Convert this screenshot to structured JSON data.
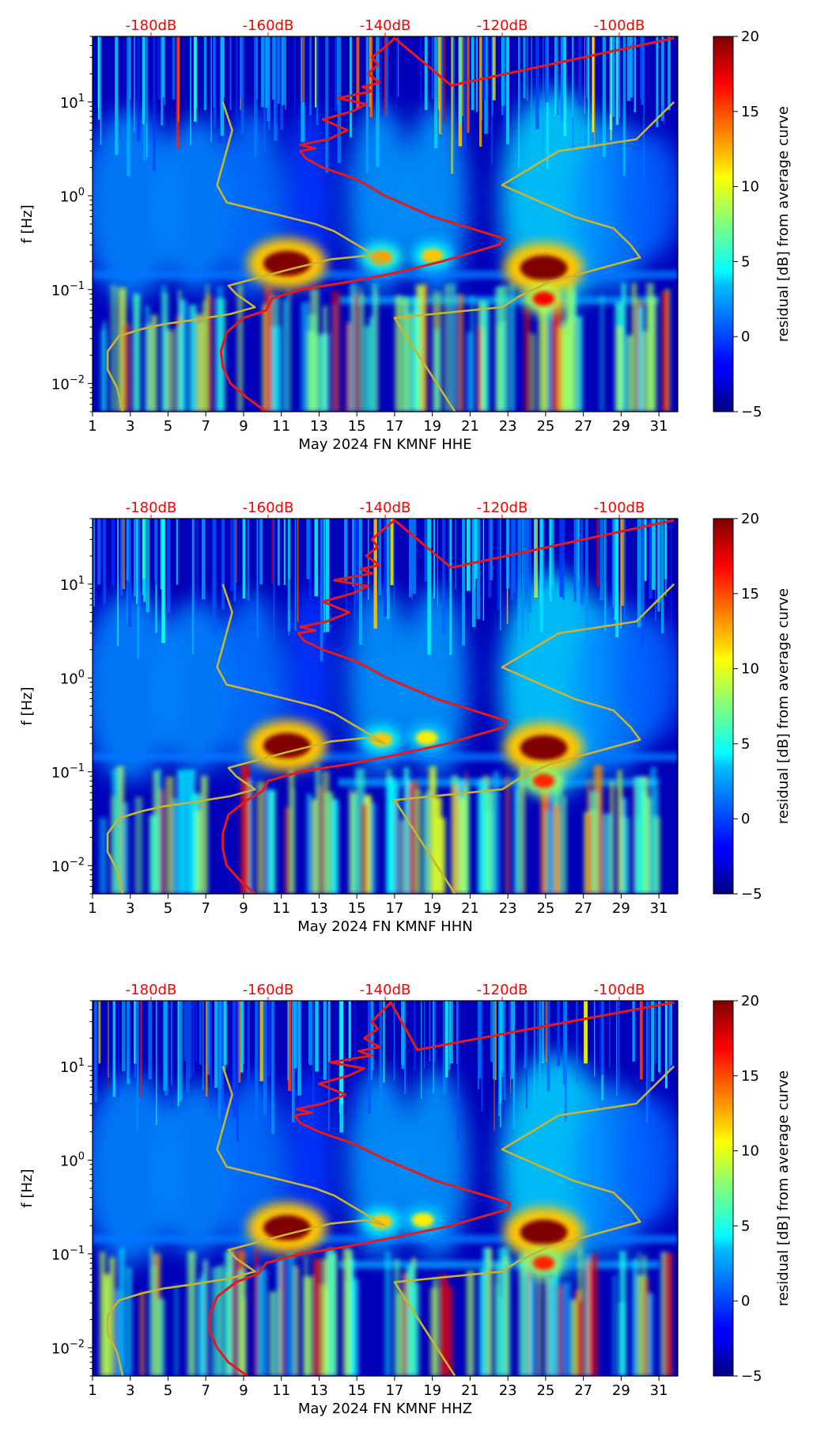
{
  "chart_data": [
    {
      "type": "heatmap",
      "station": "HHE",
      "xlabel": "May 2024 FN KMNF  HHE",
      "ylabel": "f [Hz]",
      "xlim": [
        1,
        32
      ],
      "xticks": [
        "1",
        "3",
        "5",
        "7",
        "9",
        "11",
        "13",
        "15",
        "17",
        "19",
        "21",
        "23",
        "25",
        "27",
        "29",
        "31"
      ],
      "ylim": [
        0.005,
        50
      ],
      "yticks": [
        {
          "value": 10,
          "base": "10",
          "exp": "1"
        },
        {
          "value": 1,
          "base": "10",
          "exp": "0"
        },
        {
          "value": 0.1,
          "base": "10",
          "exp": "−1"
        },
        {
          "value": 0.01,
          "base": "10",
          "exp": "−2"
        }
      ],
      "top_axis_labels": [
        "-180dB",
        "-160dB",
        "-140dB",
        "-120dB",
        "-100dB"
      ],
      "top_axis_color": "#ff0000",
      "colorbar": {
        "label": "residual [dB] from average curve",
        "min": -5,
        "max": 20,
        "ticks": [
          "20",
          "15",
          "10",
          "5",
          "0",
          "−5"
        ]
      },
      "hotspots": [
        {
          "day": 11.3,
          "freq": 0.19,
          "value": 20
        },
        {
          "day": 16.3,
          "freq": 0.22,
          "value": 13
        },
        {
          "day": 19.0,
          "freq": 0.23,
          "value": 12
        },
        {
          "day": 24.9,
          "freq": 0.17,
          "value": 20
        },
        {
          "day": 24.9,
          "freq": 0.08,
          "value": 17
        }
      ],
      "series": [
        {
          "name": "noise model (red)",
          "color": "#e8191c",
          "x": [
            10.2,
            9.2,
            8.3,
            7.9,
            7.8,
            8.1,
            9.0,
            10.2,
            10.5,
            12.0,
            14.5,
            17.0,
            19.5,
            22.5,
            22.8,
            19.0,
            16.5,
            15.0,
            13.2,
            12.3,
            12.0,
            12.8,
            12.0,
            13.5,
            14.5,
            13.2,
            14.8,
            15.5,
            14.0,
            15.8,
            15.3,
            16.2,
            15.6,
            16.1,
            15.8,
            16.6,
            17.0,
            20.0,
            31.8
          ],
          "y": [
            0.005,
            0.007,
            0.01,
            0.015,
            0.022,
            0.035,
            0.05,
            0.06,
            0.08,
            0.1,
            0.12,
            0.15,
            0.2,
            0.3,
            0.35,
            0.6,
            1.0,
            1.5,
            2.0,
            2.5,
            3.0,
            3.2,
            3.5,
            4.0,
            5.0,
            6.5,
            8.0,
            9.5,
            11.0,
            13.0,
            14.5,
            16.0,
            20.0,
            25.0,
            30.0,
            40.0,
            48.0,
            15.0,
            48.0
          ]
        },
        {
          "name": "low noise model (yellow)",
          "color": "#c8b432",
          "x": [
            2.6,
            2.3,
            1.8,
            1.8,
            2.4,
            3.6,
            4.8,
            6.2,
            8.3,
            9.6,
            8.6,
            8.2,
            11.2,
            13.6,
            15.5,
            16.5,
            13.8,
            12.8,
            10.8,
            8.1,
            7.6,
            8.4,
            7.9
          ],
          "y": [
            0.005,
            0.009,
            0.014,
            0.022,
            0.032,
            0.038,
            0.043,
            0.047,
            0.055,
            0.065,
            0.09,
            0.11,
            0.16,
            0.21,
            0.23,
            0.2,
            0.42,
            0.5,
            0.63,
            0.85,
            1.3,
            5.0,
            10.0
          ]
        },
        {
          "name": "high noise model (yellow)",
          "color": "#c8b432",
          "x": [
            20.2,
            17.0,
            22.7,
            23.6,
            25.2,
            30.0,
            29.5,
            28.6,
            26.5,
            22.7,
            25.7,
            29.8,
            31.8
          ],
          "y": [
            0.005,
            0.05,
            0.065,
            0.085,
            0.12,
            0.22,
            0.3,
            0.45,
            0.6,
            1.3,
            3.0,
            4.0,
            10.0
          ]
        }
      ]
    },
    {
      "type": "heatmap",
      "station": "HHN",
      "xlabel": "May 2024 FN KMNF  HHN",
      "ylabel": "f [Hz]",
      "xlim": [
        1,
        32
      ],
      "xticks": [
        "1",
        "3",
        "5",
        "7",
        "9",
        "11",
        "13",
        "15",
        "17",
        "19",
        "21",
        "23",
        "25",
        "27",
        "29",
        "31"
      ],
      "ylim": [
        0.005,
        50
      ],
      "yticks": [
        {
          "value": 10,
          "base": "10",
          "exp": "1"
        },
        {
          "value": 1,
          "base": "10",
          "exp": "0"
        },
        {
          "value": 0.1,
          "base": "10",
          "exp": "−1"
        },
        {
          "value": 0.01,
          "base": "10",
          "exp": "−2"
        }
      ],
      "top_axis_labels": [
        "-180dB",
        "-160dB",
        "-140dB",
        "-120dB",
        "-100dB"
      ],
      "top_axis_color": "#ff0000",
      "colorbar": {
        "label": "residual [dB] from average curve",
        "min": -5,
        "max": 20,
        "ticks": [
          "20",
          "15",
          "10",
          "5",
          "0",
          "−5"
        ]
      },
      "hotspots": [
        {
          "day": 11.3,
          "freq": 0.19,
          "value": 20
        },
        {
          "day": 16.3,
          "freq": 0.22,
          "value": 12
        },
        {
          "day": 18.7,
          "freq": 0.23,
          "value": 11
        },
        {
          "day": 24.9,
          "freq": 0.18,
          "value": 20
        },
        {
          "day": 24.9,
          "freq": 0.08,
          "value": 16
        }
      ],
      "series": [
        {
          "name": "noise model (red)",
          "color": "#e8191c",
          "x": [
            9.6,
            8.8,
            8.1,
            7.9,
            7.9,
            8.2,
            9.2,
            10.0,
            10.3,
            12.0,
            14.5,
            17.0,
            19.8,
            22.8,
            22.9,
            19.2,
            16.6,
            15.0,
            13.2,
            12.2,
            11.9,
            12.8,
            12.0,
            13.4,
            14.6,
            13.2,
            14.8,
            15.6,
            13.8,
            15.8,
            15.2,
            16.2,
            15.5,
            16.1,
            15.8,
            16.5,
            17.0,
            20.0,
            31.8
          ],
          "y": [
            0.005,
            0.007,
            0.01,
            0.015,
            0.022,
            0.035,
            0.05,
            0.062,
            0.08,
            0.1,
            0.12,
            0.15,
            0.2,
            0.3,
            0.35,
            0.6,
            1.0,
            1.5,
            2.0,
            2.5,
            3.0,
            3.2,
            3.5,
            4.0,
            5.0,
            6.5,
            8.0,
            9.5,
            11.0,
            13.0,
            14.5,
            16.0,
            20.0,
            25.0,
            30.0,
            40.0,
            48.0,
            15.0,
            48.0
          ]
        },
        {
          "name": "low noise model (yellow)",
          "color": "#c8b432",
          "x": [
            2.6,
            2.3,
            1.8,
            1.8,
            2.4,
            3.6,
            4.8,
            6.2,
            8.3,
            9.6,
            8.6,
            8.2,
            11.2,
            13.6,
            15.5,
            16.5,
            13.8,
            12.8,
            10.8,
            8.1,
            7.6,
            8.4,
            7.9
          ],
          "y": [
            0.005,
            0.009,
            0.014,
            0.022,
            0.032,
            0.038,
            0.043,
            0.047,
            0.055,
            0.065,
            0.09,
            0.11,
            0.16,
            0.21,
            0.23,
            0.2,
            0.42,
            0.5,
            0.63,
            0.85,
            1.3,
            5.0,
            10.0
          ]
        },
        {
          "name": "high noise model (yellow)",
          "color": "#c8b432",
          "x": [
            20.2,
            17.0,
            22.7,
            23.6,
            25.2,
            30.0,
            29.5,
            28.6,
            26.5,
            22.7,
            25.7,
            29.8,
            31.8
          ],
          "y": [
            0.005,
            0.05,
            0.065,
            0.085,
            0.12,
            0.22,
            0.3,
            0.45,
            0.6,
            1.3,
            3.0,
            4.0,
            10.0
          ]
        }
      ]
    },
    {
      "type": "heatmap",
      "station": "HHZ",
      "xlabel": "May 2024 FN KMNF  HHZ",
      "ylabel": "f [Hz]",
      "xlim": [
        1,
        32
      ],
      "xticks": [
        "1",
        "3",
        "5",
        "7",
        "9",
        "11",
        "13",
        "15",
        "17",
        "19",
        "21",
        "23",
        "25",
        "27",
        "29",
        "31"
      ],
      "ylim": [
        0.005,
        50
      ],
      "yticks": [
        {
          "value": 10,
          "base": "10",
          "exp": "1"
        },
        {
          "value": 1,
          "base": "10",
          "exp": "0"
        },
        {
          "value": 0.1,
          "base": "10",
          "exp": "−1"
        },
        {
          "value": 0.01,
          "base": "10",
          "exp": "−2"
        }
      ],
      "top_axis_labels": [
        "-180dB",
        "-160dB",
        "-140dB",
        "-120dB",
        "-100dB"
      ],
      "top_axis_color": "#ff0000",
      "colorbar": {
        "label": "residual [dB] from average curve",
        "min": -5,
        "max": 20,
        "ticks": [
          "20",
          "15",
          "10",
          "5",
          "0",
          "−5"
        ]
      },
      "hotspots": [
        {
          "day": 11.3,
          "freq": 0.19,
          "value": 20
        },
        {
          "day": 16.3,
          "freq": 0.22,
          "value": 12
        },
        {
          "day": 18.5,
          "freq": 0.23,
          "value": 11
        },
        {
          "day": 24.9,
          "freq": 0.17,
          "value": 20
        },
        {
          "day": 24.9,
          "freq": 0.08,
          "value": 16
        }
      ],
      "series": [
        {
          "name": "noise model (red)",
          "color": "#e8191c",
          "x": [
            9.2,
            8.2,
            7.6,
            7.2,
            7.2,
            7.6,
            8.6,
            9.8,
            10.2,
            12.0,
            14.5,
            17.0,
            20.0,
            23.0,
            23.1,
            19.2,
            16.6,
            14.8,
            13.0,
            12.0,
            11.7,
            12.6,
            11.8,
            13.2,
            14.4,
            13.0,
            14.6,
            15.4,
            13.6,
            15.8,
            15.1,
            16.2,
            15.4,
            16.1,
            15.8,
            16.4,
            16.8,
            18.2,
            31.8
          ],
          "y": [
            0.005,
            0.007,
            0.01,
            0.015,
            0.022,
            0.035,
            0.05,
            0.062,
            0.08,
            0.1,
            0.12,
            0.15,
            0.2,
            0.3,
            0.35,
            0.6,
            1.0,
            1.5,
            2.0,
            2.5,
            3.0,
            3.2,
            3.5,
            4.0,
            5.0,
            6.5,
            8.0,
            9.5,
            11.0,
            13.0,
            14.5,
            16.0,
            20.0,
            25.0,
            30.0,
            40.0,
            48.0,
            15.0,
            48.0
          ]
        },
        {
          "name": "low noise model (yellow)",
          "color": "#c8b432",
          "x": [
            2.6,
            2.3,
            1.8,
            1.8,
            2.4,
            3.6,
            4.8,
            6.2,
            8.3,
            9.6,
            8.6,
            8.2,
            11.2,
            13.6,
            15.5,
            16.5,
            13.8,
            12.8,
            10.8,
            8.1,
            7.6,
            8.4,
            7.9
          ],
          "y": [
            0.005,
            0.009,
            0.014,
            0.022,
            0.032,
            0.038,
            0.043,
            0.047,
            0.055,
            0.065,
            0.09,
            0.11,
            0.16,
            0.21,
            0.23,
            0.2,
            0.42,
            0.5,
            0.63,
            0.85,
            1.3,
            5.0,
            10.0
          ]
        },
        {
          "name": "high noise model (yellow)",
          "color": "#c8b432",
          "x": [
            20.2,
            17.0,
            22.7,
            23.6,
            25.2,
            30.0,
            29.5,
            28.6,
            26.5,
            22.7,
            25.7,
            29.8,
            31.8
          ],
          "y": [
            0.005,
            0.05,
            0.065,
            0.085,
            0.12,
            0.22,
            0.3,
            0.45,
            0.6,
            1.3,
            3.0,
            4.0,
            10.0
          ]
        }
      ]
    }
  ]
}
